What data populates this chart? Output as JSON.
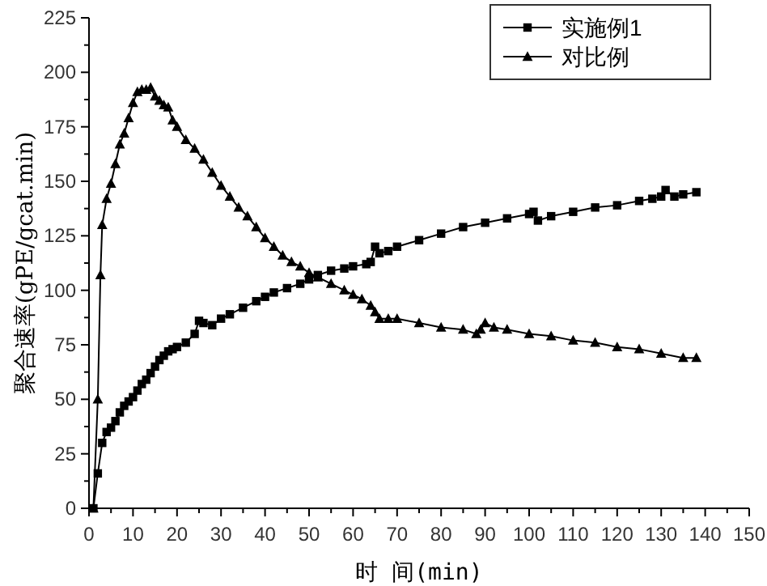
{
  "chart_data": {
    "type": "line",
    "xlabel": "时 间(min)",
    "ylabel": "聚合速率(gPE/gcat.min)",
    "xlim": [
      0,
      150
    ],
    "ylim": [
      0,
      225
    ],
    "xticks": [
      0,
      10,
      20,
      30,
      40,
      50,
      60,
      70,
      80,
      90,
      100,
      110,
      120,
      130,
      140,
      150
    ],
    "yticks": [
      0,
      25,
      50,
      75,
      100,
      125,
      150,
      175,
      200,
      225
    ],
    "grid": false,
    "legend": "top right",
    "line_style": "solid",
    "series": [
      {
        "name": "实施例1",
        "color": "#000000",
        "marker": "square",
        "x": [
          1,
          2,
          3,
          4,
          5,
          6,
          7,
          8,
          9,
          10,
          11,
          12,
          13,
          14,
          15,
          16,
          17,
          18,
          19,
          20,
          22,
          24,
          25,
          26,
          28,
          30,
          32,
          35,
          38,
          40,
          42,
          45,
          48,
          50,
          52,
          55,
          58,
          60,
          63,
          64,
          65,
          66,
          68,
          70,
          75,
          80,
          85,
          90,
          95,
          100,
          101,
          102,
          105,
          110,
          115,
          120,
          125,
          128,
          130,
          131,
          133,
          135,
          138
        ],
        "values": [
          0,
          16,
          30,
          35,
          37,
          40,
          44,
          47,
          49,
          51,
          54,
          57,
          59,
          62,
          65,
          68,
          70,
          72,
          73,
          74,
          76,
          80,
          86,
          85,
          84,
          87,
          89,
          92,
          95,
          97,
          99,
          101,
          103,
          105,
          107,
          109,
          110,
          111,
          112,
          113,
          120,
          117,
          118,
          120,
          123,
          126,
          129,
          131,
          133,
          135,
          136,
          132,
          134,
          136,
          138,
          139,
          141,
          142,
          143,
          146,
          143,
          144,
          145
        ]
      },
      {
        "name": "对比例",
        "color": "#000000",
        "marker": "triangle",
        "x": [
          1,
          2,
          2.6,
          3,
          4,
          5,
          6,
          7,
          8,
          9,
          10,
          11,
          12,
          13,
          14,
          15,
          16,
          17,
          18,
          19,
          20,
          22,
          24,
          26,
          28,
          30,
          32,
          34,
          36,
          38,
          40,
          42,
          44,
          46,
          48,
          50,
          52,
          55,
          58,
          60,
          62,
          64,
          65,
          66,
          68,
          70,
          75,
          80,
          85,
          88,
          89,
          90,
          92,
          95,
          100,
          105,
          110,
          115,
          120,
          125,
          130,
          135,
          138
        ],
        "values": [
          0,
          50,
          107,
          130,
          142,
          149,
          158,
          167,
          172,
          179,
          186,
          191,
          192,
          192,
          193,
          189,
          187,
          185,
          184,
          178,
          175,
          169,
          165,
          160,
          154,
          148,
          143,
          138,
          134,
          129,
          124,
          120,
          116,
          113,
          111,
          108,
          106,
          103,
          100,
          98,
          96,
          93,
          90,
          87,
          87,
          87,
          85,
          83,
          82,
          80,
          82,
          85,
          83,
          82,
          80,
          79,
          77,
          76,
          74,
          73,
          71,
          69,
          69
        ]
      }
    ]
  }
}
